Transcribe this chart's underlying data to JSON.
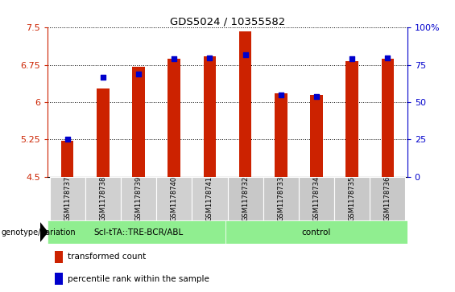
{
  "title": "GDS5024 / 10355582",
  "samples": [
    "GSM1178737",
    "GSM1178738",
    "GSM1178739",
    "GSM1178740",
    "GSM1178741",
    "GSM1178732",
    "GSM1178733",
    "GSM1178734",
    "GSM1178735",
    "GSM1178736"
  ],
  "transformed_counts": [
    5.22,
    6.28,
    6.72,
    6.88,
    6.92,
    7.43,
    6.18,
    6.15,
    6.82,
    6.87
  ],
  "percentile_ranks": [
    25,
    67,
    69,
    79,
    80,
    82,
    55,
    54,
    79,
    80
  ],
  "ylim": [
    4.5,
    7.5
  ],
  "yticks": [
    4.5,
    5.25,
    6.0,
    6.75,
    7.5
  ],
  "ytick_labels": [
    "4.5",
    "5.25",
    "6",
    "6.75",
    "7.5"
  ],
  "y2lim": [
    0,
    100
  ],
  "y2ticks": [
    0,
    25,
    50,
    75,
    100
  ],
  "y2tick_labels": [
    "0",
    "25",
    "50",
    "75",
    "100%"
  ],
  "bar_color": "#cc2200",
  "dot_color": "#0000cc",
  "bar_width": 0.35,
  "sample_box_color_scl": "#d0d0d0",
  "sample_box_color_ctrl": "#c8c8c8",
  "group_color": "#90EE90",
  "genotype_label": "genotype/variation",
  "group1_label": "Scl-tTA::TRE-BCR/ABL",
  "group2_label": "control",
  "group1_count": 5,
  "group2_count": 5,
  "legend_items": [
    {
      "color": "#cc2200",
      "label": "transformed count"
    },
    {
      "color": "#0000cc",
      "label": "percentile rank within the sample"
    }
  ]
}
